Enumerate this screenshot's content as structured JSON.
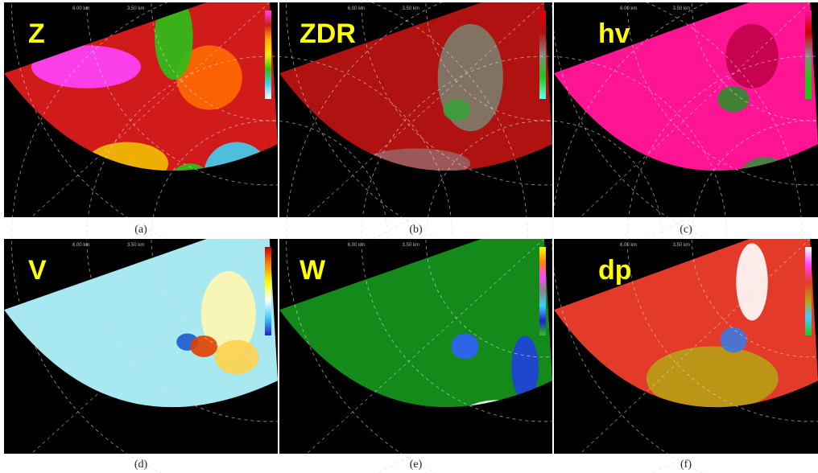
{
  "panels": [
    {
      "label": "Z",
      "caption": "(a)",
      "range_labels": [
        "6.00 km",
        "3.50 km"
      ]
    },
    {
      "label": "ZDR",
      "caption": "(b)",
      "range_labels": [
        "6.00 km",
        "3.50 km"
      ]
    },
    {
      "label": "hv",
      "caption": "(c)",
      "range_labels": [
        "6.00 km",
        "3.50 km"
      ]
    },
    {
      "label": "V",
      "caption": "(d)",
      "range_labels": [
        "6.00 km",
        "3.50 km"
      ]
    },
    {
      "label": "W",
      "caption": "(e)",
      "range_labels": [
        "6.00 km",
        "3.50 km"
      ]
    },
    {
      "label": "dp",
      "caption": "(f)",
      "range_labels": [
        "6.00 km",
        "3.50 km"
      ]
    }
  ]
}
